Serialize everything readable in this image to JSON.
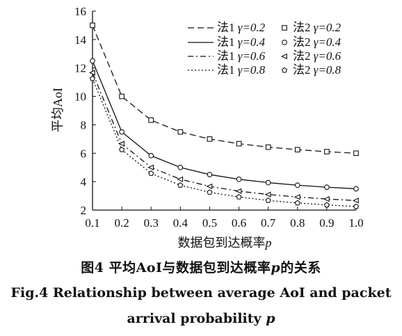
{
  "chart_data": {
    "type": "line",
    "title": "",
    "xlabel": "数据包到达概率",
    "xlabel_var": "p",
    "ylabel": "平均AoI",
    "xlim": [
      0.1,
      1.0
    ],
    "ylim": [
      2,
      16
    ],
    "x_ticks": [
      "0.1",
      "0.2",
      "0.3",
      "0.4",
      "0.5",
      "0.6",
      "0.7",
      "0.8",
      "0.9",
      "1.0"
    ],
    "y_ticks": [
      "2",
      "4",
      "6",
      "8",
      "10",
      "12",
      "14",
      "16"
    ],
    "x": [
      0.1,
      0.2,
      0.3,
      0.4,
      0.5,
      0.6,
      0.7,
      0.8,
      0.9,
      1.0
    ],
    "legend_position": "top-right",
    "grid": false,
    "series": [
      {
        "name": "法1 γ=0.2",
        "kind": "line",
        "style": "dashed",
        "values": [
          15.0,
          10.0,
          8.33,
          7.5,
          7.0,
          6.67,
          6.43,
          6.25,
          6.11,
          6.0
        ]
      },
      {
        "name": "法1 γ=0.4",
        "kind": "line",
        "style": "solid",
        "values": [
          12.5,
          7.5,
          5.83,
          5.0,
          4.5,
          4.17,
          3.93,
          3.75,
          3.61,
          3.5
        ]
      },
      {
        "name": "法1 γ=0.6",
        "kind": "line",
        "style": "dashdot",
        "values": [
          11.67,
          6.67,
          5.0,
          4.17,
          3.67,
          3.33,
          3.1,
          2.92,
          2.78,
          2.67
        ]
      },
      {
        "name": "法1 γ=0.8",
        "kind": "line",
        "style": "dotted",
        "values": [
          11.25,
          6.25,
          4.58,
          3.75,
          3.25,
          2.92,
          2.68,
          2.5,
          2.36,
          2.25
        ]
      },
      {
        "name": "法2 γ=0.2",
        "kind": "markers",
        "marker": "square",
        "values": [
          15.0,
          10.0,
          8.33,
          7.5,
          7.0,
          6.67,
          6.43,
          6.25,
          6.11,
          6.0
        ]
      },
      {
        "name": "法2 γ=0.4",
        "kind": "markers",
        "marker": "circle",
        "values": [
          12.5,
          7.5,
          5.83,
          5.0,
          4.5,
          4.17,
          3.93,
          3.75,
          3.61,
          3.5
        ]
      },
      {
        "name": "法2 γ=0.6",
        "kind": "markers",
        "marker": "triangle-left",
        "values": [
          11.67,
          6.67,
          5.0,
          4.17,
          3.67,
          3.33,
          3.1,
          2.92,
          2.78,
          2.67
        ]
      },
      {
        "name": "法2 γ=0.8",
        "kind": "markers",
        "marker": "pentagon",
        "values": [
          11.25,
          6.25,
          4.58,
          3.75,
          3.25,
          2.92,
          2.68,
          2.5,
          2.36,
          2.25
        ]
      }
    ]
  },
  "caption": {
    "cn_prefix": "图4 平均AoI与数据包到达概率",
    "cn_var": "p",
    "cn_suffix": "的关系",
    "en_line1": "Fig.4 Relationship between average AoI and packet",
    "en_line2_prefix": "arrival probability ",
    "en_var": "p"
  }
}
